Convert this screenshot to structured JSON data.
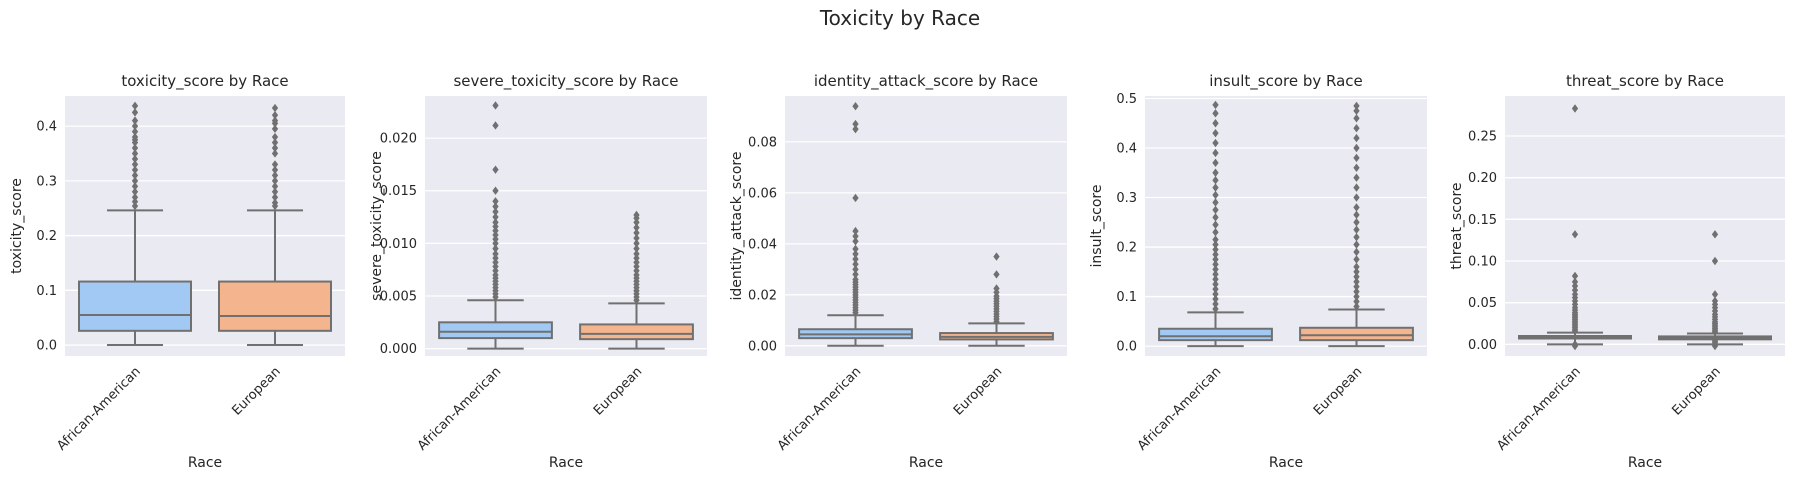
{
  "figure_title": "Toxicity by Race",
  "colors": {
    "panel_bg": "#eaeaf2",
    "grid": "#ffffff",
    "line": "#707070",
    "african_american": "#a1c9f4",
    "european": "#f4b48e"
  },
  "chart_data": [
    {
      "type": "box",
      "title": "toxicity_score by Race",
      "xlabel": "Race",
      "ylabel": "toxicity_score",
      "ylim": [
        -0.02,
        0.455
      ],
      "yticks": [
        0.0,
        0.1,
        0.2,
        0.3,
        0.4
      ],
      "ytick_labels": [
        "0.0",
        "0.1",
        "0.2",
        "0.3",
        "0.4"
      ],
      "categories": [
        "African-American",
        "European"
      ],
      "boxes": [
        {
          "whislo": 0.0,
          "q1": 0.026,
          "median": 0.055,
          "q3": 0.116,
          "whishi": 0.246,
          "fliers": [
            0.254,
            0.262,
            0.27,
            0.28,
            0.29,
            0.3,
            0.31,
            0.32,
            0.33,
            0.34,
            0.35,
            0.36,
            0.37,
            0.375,
            0.38,
            0.39,
            0.4,
            0.41,
            0.425,
            0.437
          ]
        },
        {
          "whislo": 0.0,
          "q1": 0.026,
          "median": 0.053,
          "q3": 0.116,
          "whishi": 0.246,
          "fliers": [
            0.254,
            0.26,
            0.27,
            0.28,
            0.29,
            0.3,
            0.31,
            0.32,
            0.33,
            0.35,
            0.36,
            0.37,
            0.38,
            0.395,
            0.405,
            0.41,
            0.42,
            0.433
          ]
        }
      ]
    },
    {
      "type": "box",
      "title": "severe_toxicity_score by Race",
      "xlabel": "Race",
      "ylabel": "severe_toxicity_score",
      "ylim": [
        -0.0007,
        0.024
      ],
      "yticks": [
        0.0,
        0.005,
        0.01,
        0.015,
        0.02
      ],
      "ytick_labels": [
        "0.000",
        "0.005",
        "0.010",
        "0.015",
        "0.020"
      ],
      "categories": [
        "African-American",
        "European"
      ],
      "boxes": [
        {
          "whislo": 0.0,
          "q1": 0.001,
          "median": 0.0016,
          "q3": 0.0025,
          "whishi": 0.0046,
          "fliers": [
            0.0049,
            0.0052,
            0.0055,
            0.0058,
            0.0061,
            0.0064,
            0.0067,
            0.007,
            0.0074,
            0.0078,
            0.0082,
            0.0086,
            0.009,
            0.0095,
            0.01,
            0.0104,
            0.0108,
            0.0112,
            0.0116,
            0.012,
            0.0125,
            0.013,
            0.0135,
            0.014,
            0.015,
            0.017,
            0.0212,
            0.0231
          ]
        },
        {
          "whislo": 0.0,
          "q1": 0.0009,
          "median": 0.0014,
          "q3": 0.0023,
          "whishi": 0.0043,
          "fliers": [
            0.0046,
            0.0049,
            0.0052,
            0.0055,
            0.0058,
            0.0061,
            0.0064,
            0.0067,
            0.007,
            0.0074,
            0.0078,
            0.0082,
            0.0086,
            0.009,
            0.0095,
            0.01,
            0.0105,
            0.011,
            0.0115,
            0.012,
            0.0124,
            0.0127
          ]
        }
      ]
    },
    {
      "type": "box",
      "title": "identity_attack_score by Race",
      "xlabel": "Race",
      "ylabel": "identity_attack_score",
      "ylim": [
        -0.004,
        0.098
      ],
      "yticks": [
        0.0,
        0.02,
        0.04,
        0.06,
        0.08
      ],
      "ytick_labels": [
        "0.00",
        "0.02",
        "0.04",
        "0.06",
        "0.08"
      ],
      "categories": [
        "African-American",
        "European"
      ],
      "boxes": [
        {
          "whislo": 0.0,
          "q1": 0.003,
          "median": 0.0045,
          "q3": 0.0065,
          "whishi": 0.012,
          "fliers": [
            0.013,
            0.014,
            0.015,
            0.016,
            0.017,
            0.018,
            0.019,
            0.02,
            0.021,
            0.022,
            0.023,
            0.024,
            0.025,
            0.026,
            0.028,
            0.03,
            0.032,
            0.034,
            0.036,
            0.038,
            0.041,
            0.043,
            0.045,
            0.058,
            0.085,
            0.087,
            0.094
          ]
        },
        {
          "whislo": 0.0,
          "q1": 0.0025,
          "median": 0.0035,
          "q3": 0.005,
          "whishi": 0.0088,
          "fliers": [
            0.0095,
            0.0105,
            0.0115,
            0.0125,
            0.0135,
            0.0145,
            0.0155,
            0.0165,
            0.0175,
            0.0185,
            0.0195,
            0.021,
            0.0225,
            0.028,
            0.035
          ]
        }
      ]
    },
    {
      "type": "box",
      "title": "insult_score by Race",
      "xlabel": "Race",
      "ylabel": "insult_score",
      "ylim": [
        -0.02,
        0.505
      ],
      "yticks": [
        0.0,
        0.1,
        0.2,
        0.3,
        0.4,
        0.5
      ],
      "ytick_labels": [
        "0.0",
        "0.1",
        "0.2",
        "0.3",
        "0.4",
        "0.5"
      ],
      "categories": [
        "African-American",
        "European"
      ],
      "boxes": [
        {
          "whislo": 0.0,
          "q1": 0.012,
          "median": 0.02,
          "q3": 0.035,
          "whishi": 0.068,
          "fliers": [
            0.075,
            0.085,
            0.095,
            0.105,
            0.115,
            0.125,
            0.135,
            0.145,
            0.155,
            0.165,
            0.175,
            0.185,
            0.195,
            0.205,
            0.215,
            0.23,
            0.245,
            0.26,
            0.275,
            0.29,
            0.305,
            0.32,
            0.335,
            0.35,
            0.37,
            0.39,
            0.41,
            0.43,
            0.45,
            0.47,
            0.487
          ]
        },
        {
          "whislo": 0.0,
          "q1": 0.012,
          "median": 0.022,
          "q3": 0.037,
          "whishi": 0.074,
          "fliers": [
            0.08,
            0.09,
            0.1,
            0.11,
            0.12,
            0.13,
            0.14,
            0.15,
            0.16,
            0.175,
            0.19,
            0.205,
            0.22,
            0.235,
            0.25,
            0.265,
            0.28,
            0.3,
            0.32,
            0.34,
            0.36,
            0.38,
            0.4,
            0.42,
            0.44,
            0.46,
            0.475,
            0.485
          ]
        }
      ]
    },
    {
      "type": "box",
      "title": "threat_score by Race",
      "xlabel": "Race",
      "ylabel": "threat_score",
      "ylim": [
        -0.014,
        0.298
      ],
      "yticks": [
        0.0,
        0.05,
        0.1,
        0.15,
        0.2,
        0.25
      ],
      "ytick_labels": [
        "0.00",
        "0.05",
        "0.10",
        "0.15",
        "0.20",
        "0.25"
      ],
      "categories": [
        "African-American",
        "European"
      ],
      "boxes": [
        {
          "whislo": 0.0,
          "q1": 0.007,
          "median": 0.008,
          "q3": 0.01,
          "whishi": 0.014,
          "fliers": [
            -0.002,
            0.0,
            0.016,
            0.018,
            0.02,
            0.022,
            0.024,
            0.026,
            0.028,
            0.03,
            0.032,
            0.034,
            0.036,
            0.038,
            0.041,
            0.044,
            0.048,
            0.052,
            0.056,
            0.06,
            0.065,
            0.07,
            0.075,
            0.082,
            0.132,
            0.283
          ]
        },
        {
          "whislo": 0.0,
          "q1": 0.006,
          "median": 0.008,
          "q3": 0.0095,
          "whishi": 0.013,
          "fliers": [
            -0.002,
            0.0,
            0.002,
            0.004,
            0.015,
            0.017,
            0.019,
            0.021,
            0.023,
            0.025,
            0.027,
            0.03,
            0.033,
            0.036,
            0.04,
            0.044,
            0.048,
            0.052,
            0.06,
            0.1,
            0.132
          ]
        }
      ]
    }
  ]
}
